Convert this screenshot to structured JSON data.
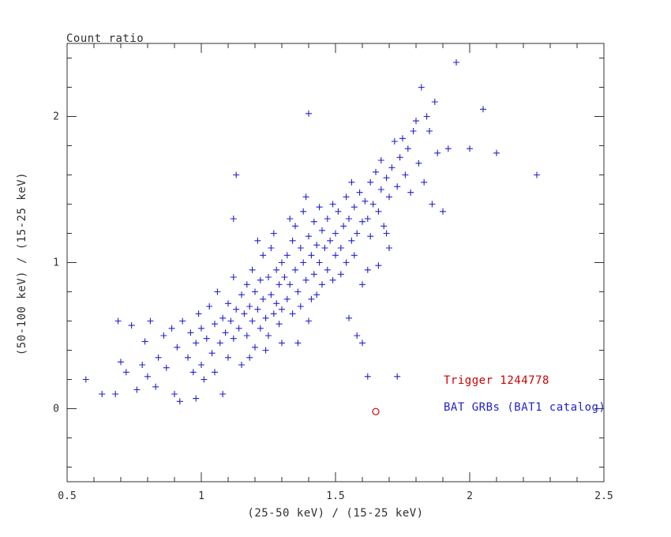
{
  "chart_data": {
    "type": "scatter",
    "title": "Count ratio",
    "xlabel": "(25-50 keV) / (15-25 keV)",
    "ylabel": "(50-100 keV) / (15-25 keV)",
    "xlim": [
      0.5,
      2.5
    ],
    "ylim": [
      -0.5,
      2.5
    ],
    "x_major_ticks": [
      0.5,
      1.0,
      1.5,
      2.0,
      2.5
    ],
    "x_tick_labels": [
      "0.5",
      "1",
      "1.5",
      "2",
      "2.5"
    ],
    "x_minor_step": 0.1,
    "y_major_ticks": [
      0,
      1,
      2
    ],
    "y_tick_labels": [
      "0",
      "1",
      "2"
    ],
    "y_minor_step": 0.2,
    "grid": false,
    "axis_color": "#303030",
    "marker_size_px": 9,
    "legend": {
      "position": "inside-lower-right",
      "entries": [
        {
          "label": "Trigger 1244778",
          "color": "#cc0000"
        },
        {
          "label": "BAT GRBs (BAT1 catalog)",
          "color": "#2222cc"
        }
      ]
    },
    "series": [
      {
        "name": "BAT GRBs (BAT1 catalog)",
        "marker": "plus",
        "color": "#2222cc",
        "points": [
          [
            0.57,
            0.2
          ],
          [
            0.63,
            0.1
          ],
          [
            0.68,
            0.1
          ],
          [
            0.69,
            0.6
          ],
          [
            0.7,
            0.32
          ],
          [
            0.72,
            0.25
          ],
          [
            0.74,
            0.57
          ],
          [
            0.76,
            0.13
          ],
          [
            0.78,
            0.3
          ],
          [
            0.79,
            0.46
          ],
          [
            0.8,
            0.22
          ],
          [
            0.81,
            0.6
          ],
          [
            0.83,
            0.15
          ],
          [
            0.84,
            0.35
          ],
          [
            0.86,
            0.5
          ],
          [
            0.87,
            0.28
          ],
          [
            0.89,
            0.55
          ],
          [
            0.9,
            0.1
          ],
          [
            0.91,
            0.42
          ],
          [
            0.92,
            0.05
          ],
          [
            0.93,
            0.6
          ],
          [
            0.95,
            0.35
          ],
          [
            0.96,
            0.52
          ],
          [
            0.97,
            0.25
          ],
          [
            0.98,
            0.45
          ],
          [
            0.98,
            0.07
          ],
          [
            0.99,
            0.65
          ],
          [
            1.0,
            0.3
          ],
          [
            1.0,
            0.55
          ],
          [
            1.01,
            0.2
          ],
          [
            1.02,
            0.48
          ],
          [
            1.03,
            0.7
          ],
          [
            1.04,
            0.38
          ],
          [
            1.05,
            0.58
          ],
          [
            1.05,
            0.25
          ],
          [
            1.06,
            0.8
          ],
          [
            1.07,
            0.45
          ],
          [
            1.08,
            0.62
          ],
          [
            1.08,
            0.1
          ],
          [
            1.09,
            0.52
          ],
          [
            1.1,
            0.72
          ],
          [
            1.1,
            0.35
          ],
          [
            1.11,
            0.6
          ],
          [
            1.12,
            0.9
          ],
          [
            1.12,
            0.48
          ],
          [
            1.13,
            0.68
          ],
          [
            1.14,
            0.55
          ],
          [
            1.15,
            0.78
          ],
          [
            1.15,
            0.3
          ],
          [
            1.12,
            1.3
          ],
          [
            1.13,
            1.6
          ],
          [
            1.16,
            0.65
          ],
          [
            1.17,
            0.85
          ],
          [
            1.17,
            0.5
          ],
          [
            1.18,
            0.7
          ],
          [
            1.19,
            0.95
          ],
          [
            1.19,
            0.6
          ],
          [
            1.2,
            0.8
          ],
          [
            1.2,
            0.42
          ],
          [
            1.21,
            0.68
          ],
          [
            1.22,
            0.88
          ],
          [
            1.22,
            0.55
          ],
          [
            1.23,
            0.75
          ],
          [
            1.23,
            1.05
          ],
          [
            1.24,
            0.62
          ],
          [
            1.25,
            0.9
          ],
          [
            1.25,
            0.5
          ],
          [
            1.26,
            0.78
          ],
          [
            1.26,
            1.1
          ],
          [
            1.27,
            0.65
          ],
          [
            1.28,
            0.95
          ],
          [
            1.28,
            0.72
          ],
          [
            1.29,
            0.85
          ],
          [
            1.29,
            0.58
          ],
          [
            1.3,
            1.0
          ],
          [
            1.3,
            0.68
          ],
          [
            1.18,
            0.35
          ],
          [
            1.21,
            1.15
          ],
          [
            1.24,
            0.4
          ],
          [
            1.27,
            1.2
          ],
          [
            1.3,
            0.45
          ],
          [
            1.31,
            0.9
          ],
          [
            1.32,
            0.75
          ],
          [
            1.32,
            1.05
          ],
          [
            1.33,
            0.85
          ],
          [
            1.34,
            1.15
          ],
          [
            1.34,
            0.65
          ],
          [
            1.35,
            0.95
          ],
          [
            1.35,
            1.25
          ],
          [
            1.36,
            0.8
          ],
          [
            1.37,
            1.1
          ],
          [
            1.37,
            0.7
          ],
          [
            1.38,
            1.0
          ],
          [
            1.38,
            1.35
          ],
          [
            1.39,
            0.88
          ],
          [
            1.4,
            1.18
          ],
          [
            1.4,
            0.6
          ],
          [
            1.41,
            1.05
          ],
          [
            1.42,
            0.92
          ],
          [
            1.42,
            1.28
          ],
          [
            1.43,
            1.12
          ],
          [
            1.43,
            0.78
          ],
          [
            1.44,
            1.0
          ],
          [
            1.45,
            1.22
          ],
          [
            1.45,
            0.85
          ],
          [
            1.36,
            0.45
          ],
          [
            1.39,
            1.45
          ],
          [
            1.41,
            0.75
          ],
          [
            1.44,
            1.38
          ],
          [
            1.33,
            1.3
          ],
          [
            1.4,
            2.02
          ],
          [
            1.46,
            1.1
          ],
          [
            1.47,
            0.95
          ],
          [
            1.47,
            1.3
          ],
          [
            1.48,
            1.15
          ],
          [
            1.49,
            1.4
          ],
          [
            1.49,
            0.88
          ],
          [
            1.5,
            1.2
          ],
          [
            1.5,
            1.05
          ],
          [
            1.51,
            1.35
          ],
          [
            1.52,
            1.1
          ],
          [
            1.52,
            0.92
          ],
          [
            1.53,
            1.25
          ],
          [
            1.54,
            1.45
          ],
          [
            1.54,
            1.0
          ],
          [
            1.55,
            1.3
          ],
          [
            1.56,
            1.15
          ],
          [
            1.56,
            1.55
          ],
          [
            1.57,
            1.38
          ],
          [
            1.58,
            1.2
          ],
          [
            1.58,
            0.5
          ],
          [
            1.59,
            1.48
          ],
          [
            1.6,
            1.28
          ],
          [
            1.6,
            0.85
          ],
          [
            1.55,
            0.62
          ],
          [
            1.57,
            1.05
          ],
          [
            1.6,
            0.45
          ],
          [
            1.62,
            0.22
          ],
          [
            1.73,
            0.22
          ],
          [
            1.62,
            0.95
          ],
          [
            1.61,
            1.42
          ],
          [
            1.62,
            1.3
          ],
          [
            1.63,
            1.55
          ],
          [
            1.63,
            1.18
          ],
          [
            1.64,
            1.4
          ],
          [
            1.65,
            1.62
          ],
          [
            1.66,
            1.35
          ],
          [
            1.67,
            1.5
          ],
          [
            1.67,
            1.7
          ],
          [
            1.68,
            1.25
          ],
          [
            1.69,
            1.58
          ],
          [
            1.7,
            1.45
          ],
          [
            1.7,
            1.1
          ],
          [
            1.71,
            1.65
          ],
          [
            1.72,
            1.83
          ],
          [
            1.73,
            1.52
          ],
          [
            1.74,
            1.72
          ],
          [
            1.75,
            1.85
          ],
          [
            1.66,
            0.98
          ],
          [
            1.69,
            1.2
          ],
          [
            1.76,
            1.6
          ],
          [
            1.77,
            1.78
          ],
          [
            1.78,
            1.48
          ],
          [
            1.79,
            1.9
          ],
          [
            1.8,
            1.97
          ],
          [
            1.81,
            1.68
          ],
          [
            1.82,
            2.2
          ],
          [
            1.83,
            1.55
          ],
          [
            1.84,
            2.0
          ],
          [
            1.85,
            1.9
          ],
          [
            1.86,
            1.4
          ],
          [
            1.87,
            2.1
          ],
          [
            1.88,
            1.75
          ],
          [
            1.9,
            1.35
          ],
          [
            1.92,
            1.78
          ],
          [
            1.95,
            2.37
          ],
          [
            2.0,
            1.78
          ],
          [
            2.05,
            2.05
          ],
          [
            2.1,
            1.75
          ],
          [
            2.25,
            1.6
          ]
        ]
      },
      {
        "name": "Trigger 1244778",
        "marker": "open-circle",
        "color": "#cc0000",
        "points": [
          [
            1.65,
            -0.02
          ]
        ]
      }
    ]
  }
}
